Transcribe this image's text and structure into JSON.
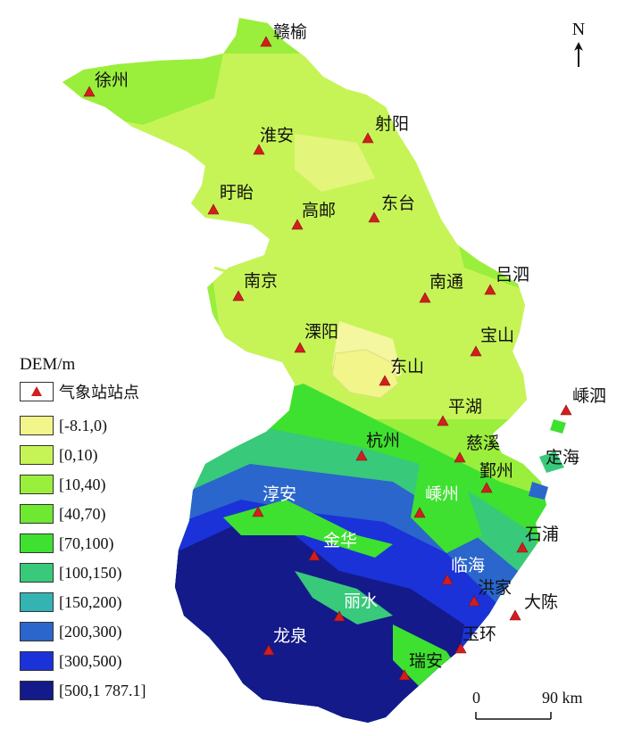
{
  "legend": {
    "title": "DEM/m",
    "station_label": "气象站站点",
    "classes": [
      {
        "label": "[-8.1,0)",
        "color": "#f1f58a"
      },
      {
        "label": "[0,10)",
        "color": "#c6f457"
      },
      {
        "label": "[10,40)",
        "color": "#9aee3c"
      },
      {
        "label": "[40,70)",
        "color": "#6ee830"
      },
      {
        "label": "[70,100)",
        "color": "#3ee12f"
      },
      {
        "label": "[100,150)",
        "color": "#38c97a"
      },
      {
        "label": "[150,200)",
        "color": "#33b4b3"
      },
      {
        "label": "[200,300)",
        "color": "#2a66cc"
      },
      {
        "label": "[300,500)",
        "color": "#1b32d8"
      },
      {
        "label": "[500,1 787.1]",
        "color": "#141a8a"
      }
    ]
  },
  "north_label": "N",
  "scale": {
    "start": "0",
    "end": "90 km"
  },
  "stations": [
    {
      "name": "赣榆",
      "marker": "ganyu-station-marker",
      "white": false
    },
    {
      "name": "徐州",
      "marker": "xuzhou-station-marker",
      "white": false
    },
    {
      "name": "射阳",
      "marker": "sheyang-station-marker",
      "white": false
    },
    {
      "name": "淮安",
      "marker": "huaian-station-marker",
      "white": false
    },
    {
      "name": "盱眙",
      "marker": "xuyi-station-marker",
      "white": false
    },
    {
      "name": "高邮",
      "marker": "gaoyou-station-marker",
      "white": false
    },
    {
      "name": "东台",
      "marker": "dongtai-station-marker",
      "white": false
    },
    {
      "name": "南京",
      "marker": "nanjing-station-marker",
      "white": false
    },
    {
      "name": "南通",
      "marker": "nantong-station-marker",
      "white": false
    },
    {
      "name": "吕泗",
      "marker": "lvsi-station-marker",
      "white": false
    },
    {
      "name": "溧阳",
      "marker": "liyang-station-marker",
      "white": false
    },
    {
      "name": "宝山",
      "marker": "baoshan-station-marker",
      "white": false
    },
    {
      "name": "东山",
      "marker": "dongshan-station-marker",
      "white": false
    },
    {
      "name": "平湖",
      "marker": "pinghu-station-marker",
      "white": false
    },
    {
      "name": "嵊泗",
      "marker": "shengsi-station-marker",
      "white": false
    },
    {
      "name": "杭州",
      "marker": "hangzhou-station-marker",
      "white": false
    },
    {
      "name": "慈溪",
      "marker": "cixi-station-marker",
      "white": false
    },
    {
      "name": "定海",
      "marker": "dinghai-station-marker",
      "white": false
    },
    {
      "name": "鄞州",
      "marker": "yinzhou-station-marker",
      "white": false
    },
    {
      "name": "淳安",
      "marker": "chunan-station-marker",
      "white": true
    },
    {
      "name": "嵊州",
      "marker": "shengzhou-station-marker",
      "white": true
    },
    {
      "name": "石浦",
      "marker": "shipu-station-marker",
      "white": false
    },
    {
      "name": "金华",
      "marker": "jinhua-station-marker",
      "white": true
    },
    {
      "name": "临海",
      "marker": "linhai-station-marker",
      "white": true
    },
    {
      "name": "洪家",
      "marker": "hongjia-station-marker",
      "white": false
    },
    {
      "name": "大陈",
      "marker": "dachen-station-marker",
      "white": false
    },
    {
      "name": "丽水",
      "marker": "lishui-station-marker",
      "white": true
    },
    {
      "name": "龙泉",
      "marker": "longquan-station-marker",
      "white": true
    },
    {
      "name": "玉环",
      "marker": "yuhuan-station-marker",
      "white": false
    },
    {
      "name": "瑞安",
      "marker": "ruian-station-marker",
      "white": false
    }
  ],
  "colors": {
    "station_marker": "#d21e1e",
    "sea": "#ffffff",
    "lake": "#f4f6a0"
  }
}
